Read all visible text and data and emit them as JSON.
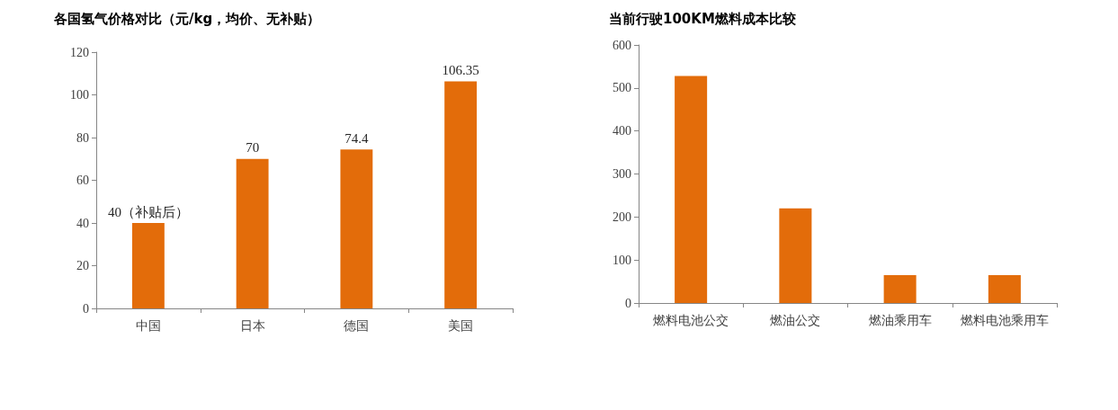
{
  "chart_data": [
    {
      "type": "bar",
      "title": "各国氢气价格对比（元/kg，均价、无补贴）",
      "categories": [
        "中国",
        "日本",
        "德国",
        "美国"
      ],
      "values": [
        40,
        70,
        74.4,
        106.35
      ],
      "value_labels": [
        "40（补贴后）",
        "70",
        "74.4",
        "106.35"
      ],
      "color": "#e36c0a",
      "ylim": [
        0,
        120
      ],
      "yticks": [
        0,
        20,
        40,
        60,
        80,
        100,
        120
      ],
      "grid": false
    },
    {
      "type": "bar",
      "title": "当前行驶100KM燃料成本比较",
      "categories": [
        "燃料电池公交",
        "燃油公交",
        "燃油乘用车",
        "燃料电池乘用车"
      ],
      "values": [
        528,
        220,
        65,
        65
      ],
      "color": "#e36c0a",
      "ylim": [
        0,
        600
      ],
      "yticks": [
        0,
        100,
        200,
        300,
        400,
        500,
        600
      ],
      "grid": false
    }
  ]
}
